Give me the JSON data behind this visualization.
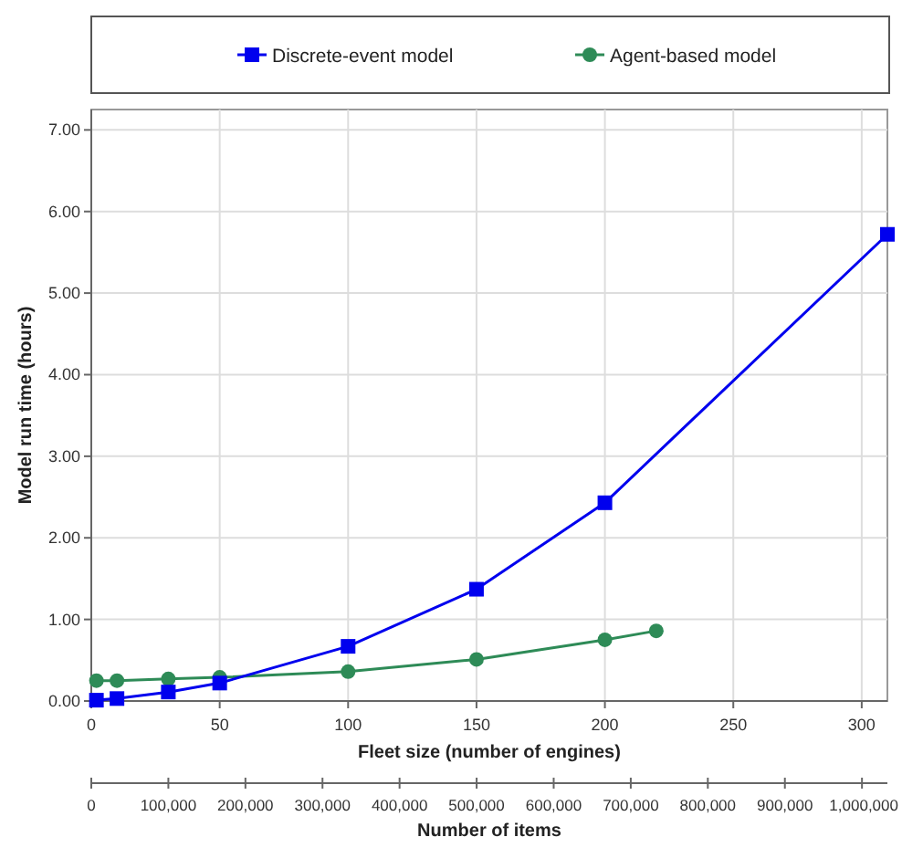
{
  "chart_data": {
    "type": "line",
    "xlabel": "Fleet size (number of engines)",
    "ylabel": "Model run time (hours)",
    "x2label": "Number of items",
    "xlim": [
      0,
      310
    ],
    "xticks": [
      0,
      50,
      100,
      150,
      200,
      250,
      300
    ],
    "x2lim": [
      0,
      1033000
    ],
    "x2ticks": [
      0,
      {
        "value": 100000,
        "label": "100,000"
      },
      {
        "value": 200000,
        "label": "200,000"
      },
      {
        "value": 300000,
        "label": "300,000"
      },
      {
        "value": 400000,
        "label": "400,000"
      },
      {
        "value": 500000,
        "label": "500,000"
      },
      {
        "value": 600000,
        "label": "600,000"
      },
      {
        "value": 700000,
        "label": "700,000"
      },
      {
        "value": 800000,
        "label": "800,000"
      },
      {
        "value": 900000,
        "label": "900,000"
      },
      {
        "value": 1000000,
        "label": "1,000,000"
      }
    ],
    "ylim": [
      0,
      7.25
    ],
    "yticks": [
      {
        "value": 0,
        "label": "0.00"
      },
      {
        "value": 1,
        "label": "1.00"
      },
      {
        "value": 2,
        "label": "2.00"
      },
      {
        "value": 3,
        "label": "3.00"
      },
      {
        "value": 4,
        "label": "4.00"
      },
      {
        "value": 5,
        "label": "5.00"
      },
      {
        "value": 6,
        "label": "6.00"
      },
      {
        "value": 7,
        "label": "7.00"
      }
    ],
    "grid": true,
    "legend": "top",
    "series": [
      {
        "name": "Discrete-event model",
        "color": "#0000ee",
        "marker": "square",
        "x": [
          2,
          10,
          30,
          50,
          100,
          150,
          200,
          310
        ],
        "values": [
          0.01,
          0.03,
          0.11,
          0.22,
          0.67,
          1.37,
          2.43,
          5.72
        ]
      },
      {
        "name": "Agent-based model",
        "color": "#2e8b57",
        "marker": "circle",
        "x": [
          2,
          10,
          30,
          50,
          100,
          150,
          200,
          220
        ],
        "values": [
          0.25,
          0.25,
          0.27,
          0.29,
          0.36,
          0.51,
          0.75,
          0.86
        ]
      }
    ]
  }
}
